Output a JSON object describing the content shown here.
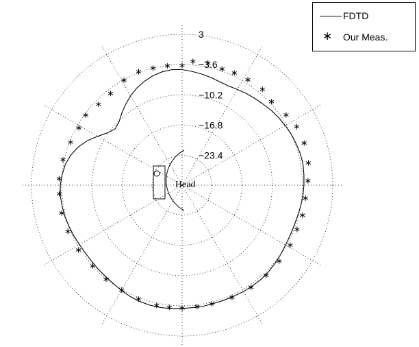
{
  "chart_data": {
    "type": "polar",
    "radial_ticks": [
      "3",
      "−3.6",
      "−10.2",
      "−16.8",
      "−23.4"
    ],
    "annotation": "Head",
    "grid": true,
    "legend_placement": "top-right",
    "series": [
      {
        "name": "FDTD",
        "style": "solid line",
        "color": "#000000",
        "points": [
          {
            "angle_deg": 0,
            "r_db": -3.3
          },
          {
            "angle_deg": 5,
            "r_db": -3.2
          },
          {
            "angle_deg": 10,
            "r_db": -3.1
          },
          {
            "angle_deg": 15,
            "r_db": -3.2
          },
          {
            "angle_deg": 20,
            "r_db": -3.4
          },
          {
            "angle_deg": 25,
            "r_db": -3.6
          },
          {
            "angle_deg": 30,
            "r_db": -3.9
          },
          {
            "angle_deg": 35,
            "r_db": -4.2
          },
          {
            "angle_deg": 40,
            "r_db": -4.5
          },
          {
            "angle_deg": 45,
            "r_db": -4.9
          },
          {
            "angle_deg": 50,
            "r_db": -5.2
          },
          {
            "angle_deg": 55,
            "r_db": -5.5
          },
          {
            "angle_deg": 60,
            "r_db": -5.8
          },
          {
            "angle_deg": 65,
            "r_db": -6.0
          },
          {
            "angle_deg": 70,
            "r_db": -5.9
          },
          {
            "angle_deg": 75,
            "r_db": -5.6
          },
          {
            "angle_deg": 80,
            "r_db": -5.3
          },
          {
            "angle_deg": 85,
            "r_db": -5.0
          },
          {
            "angle_deg": 90,
            "r_db": -4.7
          },
          {
            "angle_deg": 95,
            "r_db": -4.6
          },
          {
            "angle_deg": 100,
            "r_db": -4.8
          },
          {
            "angle_deg": 105,
            "r_db": -5.2
          },
          {
            "angle_deg": 110,
            "r_db": -5.8
          },
          {
            "angle_deg": 115,
            "r_db": -6.5
          },
          {
            "angle_deg": 120,
            "r_db": -7.4
          },
          {
            "angle_deg": 125,
            "r_db": -8.4
          },
          {
            "angle_deg": 130,
            "r_db": -9.4
          },
          {
            "angle_deg": 135,
            "r_db": -10.4
          },
          {
            "angle_deg": 140,
            "r_db": -10.8
          },
          {
            "angle_deg": 145,
            "r_db": -10.0
          },
          {
            "angle_deg": 150,
            "r_db": -8.6
          },
          {
            "angle_deg": 155,
            "r_db": -7.0
          },
          {
            "angle_deg": 160,
            "r_db": -5.7
          },
          {
            "angle_deg": 165,
            "r_db": -4.7
          },
          {
            "angle_deg": 170,
            "r_db": -4.0
          },
          {
            "angle_deg": 175,
            "r_db": -3.6
          },
          {
            "angle_deg": 180,
            "r_db": -3.3
          },
          {
            "angle_deg": 185,
            "r_db": -3.2
          },
          {
            "angle_deg": 190,
            "r_db": -3.3
          },
          {
            "angle_deg": 195,
            "r_db": -3.4
          },
          {
            "angle_deg": 200,
            "r_db": -3.6
          },
          {
            "angle_deg": 205,
            "r_db": -3.8
          },
          {
            "angle_deg": 210,
            "r_db": -4.0
          },
          {
            "angle_deg": 215,
            "r_db": -4.1
          },
          {
            "angle_deg": 220,
            "r_db": -4.1
          },
          {
            "angle_deg": 225,
            "r_db": -4.0
          },
          {
            "angle_deg": 230,
            "r_db": -3.9
          },
          {
            "angle_deg": 235,
            "r_db": -3.7
          },
          {
            "angle_deg": 240,
            "r_db": -3.4
          },
          {
            "angle_deg": 245,
            "r_db": -3.1
          },
          {
            "angle_deg": 250,
            "r_db": -2.9
          },
          {
            "angle_deg": 255,
            "r_db": -2.8
          },
          {
            "angle_deg": 260,
            "r_db": -2.8
          },
          {
            "angle_deg": 265,
            "r_db": -2.9
          },
          {
            "angle_deg": 270,
            "r_db": -3.0
          },
          {
            "angle_deg": 275,
            "r_db": -3.1
          },
          {
            "angle_deg": 280,
            "r_db": -3.1
          },
          {
            "angle_deg": 285,
            "r_db": -3.2
          },
          {
            "angle_deg": 290,
            "r_db": -3.2
          },
          {
            "angle_deg": 295,
            "r_db": -3.2
          },
          {
            "angle_deg": 300,
            "r_db": -3.1
          },
          {
            "angle_deg": 305,
            "r_db": -3.1
          },
          {
            "angle_deg": 310,
            "r_db": -3.1
          },
          {
            "angle_deg": 315,
            "r_db": -3.2
          },
          {
            "angle_deg": 320,
            "r_db": -3.4
          },
          {
            "angle_deg": 325,
            "r_db": -3.6
          },
          {
            "angle_deg": 330,
            "r_db": -3.8
          },
          {
            "angle_deg": 335,
            "r_db": -3.9
          },
          {
            "angle_deg": 340,
            "r_db": -3.9
          },
          {
            "angle_deg": 345,
            "r_db": -3.8
          },
          {
            "angle_deg": 350,
            "r_db": -3.6
          },
          {
            "angle_deg": 355,
            "r_db": -3.4
          },
          {
            "angle_deg": 360,
            "r_db": -3.3
          }
        ]
      },
      {
        "name": "Our Meas.",
        "style": "asterisk markers",
        "color": "#000000",
        "points": [
          {
            "angle_deg": 2,
            "r_db": -2.4
          },
          {
            "angle_deg": 10,
            "r_db": -1.9
          },
          {
            "angle_deg": 19,
            "r_db": -1.7
          },
          {
            "angle_deg": 27,
            "r_db": -1.8
          },
          {
            "angle_deg": 34,
            "r_db": -2.5
          },
          {
            "angle_deg": 43,
            "r_db": -3.2
          },
          {
            "angle_deg": 50,
            "r_db": -2.6
          },
          {
            "angle_deg": 58,
            "r_db": -2.8
          },
          {
            "angle_deg": 65,
            "r_db": -2.9
          },
          {
            "angle_deg": 71,
            "r_db": -3.1
          },
          {
            "angle_deg": 78,
            "r_db": -2.7
          },
          {
            "angle_deg": 85,
            "r_db": -2.8
          },
          {
            "angle_deg": 90,
            "r_db": -3.8
          },
          {
            "angle_deg": 97,
            "r_db": -3.7
          },
          {
            "angle_deg": 104,
            "r_db": -3.6
          },
          {
            "angle_deg": 111,
            "r_db": -3.4
          },
          {
            "angle_deg": 119,
            "r_db": -3.7
          },
          {
            "angle_deg": 128,
            "r_db": -4.5
          },
          {
            "angle_deg": 136,
            "r_db": -4.5
          },
          {
            "angle_deg": 144,
            "r_db": -3.9
          },
          {
            "angle_deg": 151,
            "r_db": -4.1
          },
          {
            "angle_deg": 159,
            "r_db": -3.8
          },
          {
            "angle_deg": 168,
            "r_db": -3.3
          },
          {
            "angle_deg": 177,
            "r_db": -3.0
          },
          {
            "angle_deg": 184,
            "r_db": -3.0
          },
          {
            "angle_deg": 193,
            "r_db": -2.9
          },
          {
            "angle_deg": 202,
            "r_db": -3.0
          },
          {
            "angle_deg": 212,
            "r_db": -3.2
          },
          {
            "angle_deg": 222,
            "r_db": -3.6
          },
          {
            "angle_deg": 231,
            "r_db": -3.5
          },
          {
            "angle_deg": 240,
            "r_db": -3.5
          },
          {
            "angle_deg": 249,
            "r_db": -3.3
          },
          {
            "angle_deg": 258,
            "r_db": -3.1
          },
          {
            "angle_deg": 264,
            "r_db": -3.1
          },
          {
            "angle_deg": 270,
            "r_db": -3.1
          },
          {
            "angle_deg": 277,
            "r_db": -3.2
          },
          {
            "angle_deg": 284,
            "r_db": -3.2
          },
          {
            "angle_deg": 294,
            "r_db": -3.1
          },
          {
            "angle_deg": 304,
            "r_db": -3.0
          },
          {
            "angle_deg": 313,
            "r_db": -3.0
          },
          {
            "angle_deg": 322,
            "r_db": -3.0
          },
          {
            "angle_deg": 331,
            "r_db": -2.9
          },
          {
            "angle_deg": 339,
            "r_db": -3.0
          },
          {
            "angle_deg": 346,
            "r_db": -2.8
          },
          {
            "angle_deg": 354,
            "r_db": -2.8
          }
        ]
      }
    ]
  }
}
